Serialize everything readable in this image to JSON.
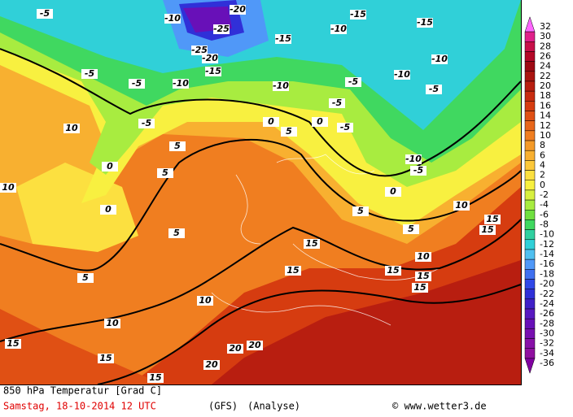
{
  "legend": {
    "levels": [
      32,
      30,
      28,
      26,
      24,
      22,
      20,
      18,
      16,
      14,
      12,
      10,
      8,
      6,
      4,
      2,
      0,
      -2,
      -4,
      -6,
      -8,
      -10,
      -12,
      -14,
      -16,
      -18,
      -20,
      -22,
      -24,
      -26,
      -28,
      -30,
      -32,
      -34,
      -36
    ],
    "colors": [
      "#ff66ff",
      "#e0208a",
      "#c8104a",
      "#b40828",
      "#9e0a14",
      "#aa1410",
      "#b81e10",
      "#c82c10",
      "#d63c10",
      "#e05014",
      "#e8661a",
      "#f07e20",
      "#f49a28",
      "#f8b030",
      "#fcc83a",
      "#fce040",
      "#f8f040",
      "#d8f040",
      "#a8ec40",
      "#70e040",
      "#40d860",
      "#30d0a0",
      "#30d0d8",
      "#50c0f0",
      "#5098f8",
      "#4070f0",
      "#3048e8",
      "#3030d8",
      "#4020c8",
      "#5818c0",
      "#6810b8",
      "#7810b0",
      "#8810a8",
      "#9010a0",
      "#8000a0"
    ]
  },
  "map": {
    "contour_labels": [
      "-5",
      "-10",
      "-20",
      "-25",
      "-25",
      "-20",
      "-15",
      "-15",
      "-10",
      "-15",
      "-15",
      "-10",
      "-10",
      "-5",
      "-5",
      "-10",
      "-10",
      "-5",
      "-5",
      "-5",
      "0",
      "0",
      "5",
      "5",
      "0",
      "5",
      "0",
      "-5",
      "-5",
      "-10",
      "-5",
      "0",
      "5",
      "5",
      "10",
      "15",
      "15",
      "10",
      "15",
      "15",
      "15",
      "15",
      "15",
      "10",
      "10",
      "5",
      "5",
      "10",
      "15",
      "15",
      "15",
      "20",
      "20",
      "20",
      "10"
    ]
  },
  "footer": {
    "title": "850 hPa Temperatur [Grad C]",
    "date": "Samstag, 18-10-2014  12 UTC",
    "model": "(GFS)",
    "run": "(Analyse)",
    "credit": "© www.wetter3.de"
  }
}
